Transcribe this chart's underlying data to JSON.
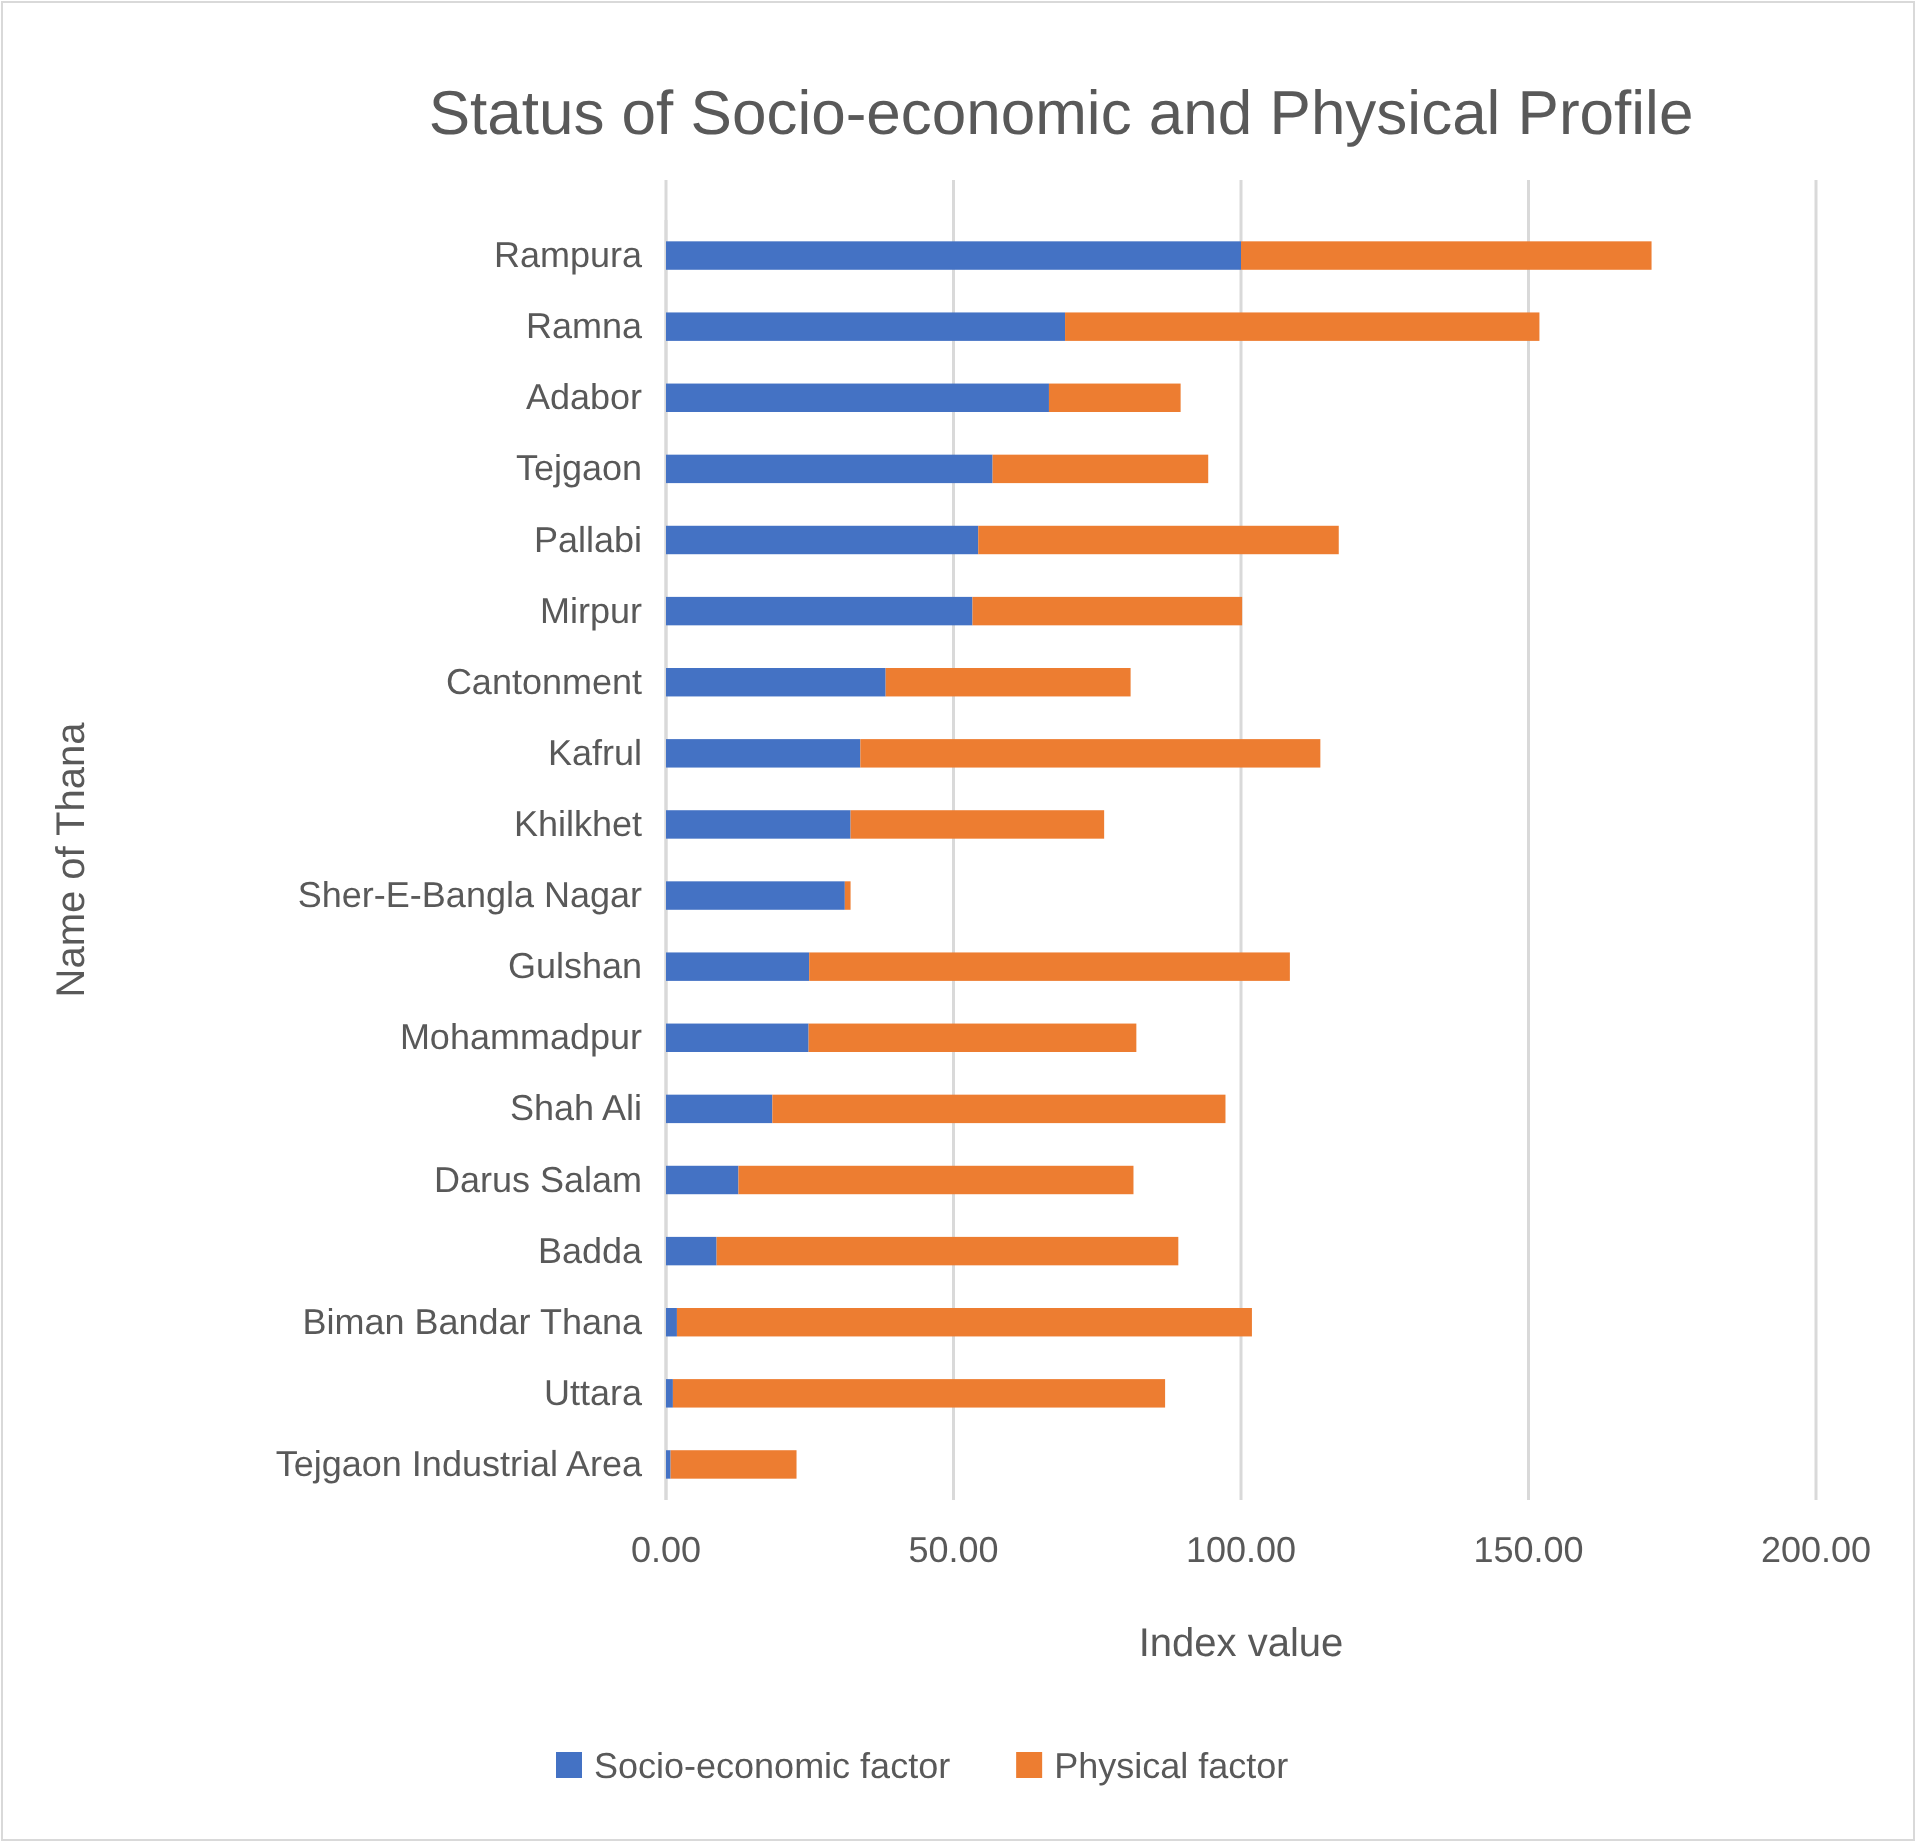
{
  "chart_data": {
    "type": "bar",
    "orientation": "horizontal",
    "stacked": true,
    "title": "Status of Socio-economic and Physical Profile",
    "xlabel": "Index value",
    "ylabel": "Name of Thana",
    "categories": [
      "Rampura",
      "Ramna",
      "Adabor",
      "Tejgaon",
      "Pallabi",
      "Mirpur",
      "Cantonment",
      "Kafrul",
      "Khilkhet",
      "Sher-E-Bangla Nagar",
      "Gulshan",
      "Mohammadpur",
      "Shah Ali",
      "Darus Salam",
      "Badda",
      "Biman Bandar Thana",
      "Uttara",
      "Tejgaon Industrial Area"
    ],
    "series": [
      {
        "name": "Socio-economic factor",
        "color": "#4472c4",
        "values": [
          100.0,
          69.4,
          66.6,
          56.8,
          54.3,
          53.3,
          38.2,
          33.8,
          32.1,
          31.1,
          24.9,
          24.8,
          18.5,
          12.6,
          8.8,
          1.9,
          1.2,
          0.8
        ]
      },
      {
        "name": "Physical factor",
        "color": "#ed7d31",
        "values": [
          71.4,
          82.5,
          22.9,
          37.5,
          62.7,
          46.9,
          42.6,
          80.0,
          44.1,
          1.0,
          83.6,
          57.0,
          78.8,
          68.7,
          80.3,
          100.0,
          85.6,
          21.9
        ]
      }
    ],
    "xlim": [
      0,
      200
    ],
    "xticks": [
      {
        "value": 0,
        "label": "0.00"
      },
      {
        "value": 50,
        "label": "50.00"
      },
      {
        "value": 100,
        "label": "100.00"
      },
      {
        "value": 150,
        "label": "150.00"
      },
      {
        "value": 200,
        "label": "200.00"
      }
    ],
    "grid": "x",
    "legend": "bottom"
  }
}
